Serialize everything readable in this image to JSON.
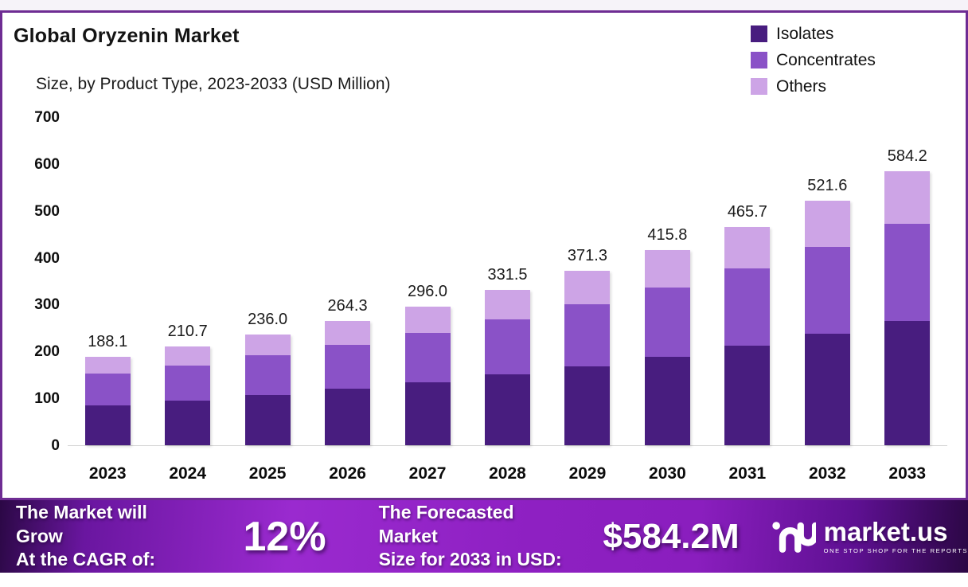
{
  "header": {
    "title": "Global Oryzenin Market",
    "subtitle": "Size, by Product Type, 2023-2033 (USD Million)"
  },
  "chart_data": {
    "type": "bar",
    "stacked": true,
    "title": "Global Oryzenin Market Size, by Product Type, 2023-2033 (USD Million)",
    "categories": [
      "2023",
      "2024",
      "2025",
      "2026",
      "2027",
      "2028",
      "2029",
      "2030",
      "2031",
      "2032",
      "2033"
    ],
    "series": [
      {
        "name": "Isolates",
        "color": "#481d7f",
        "values": [
          85.6,
          95.9,
          107.4,
          120.3,
          134.7,
          150.8,
          168.9,
          189.2,
          211.9,
          237.3,
          265.8
        ]
      },
      {
        "name": "Concentrates",
        "color": "#8a52c7",
        "values": [
          66.8,
          74.8,
          83.8,
          93.8,
          105.1,
          117.7,
          131.8,
          147.6,
          165.3,
          185.2,
          207.4
        ]
      },
      {
        "name": "Others",
        "color": "#cda4e6",
        "values": [
          35.7,
          40.0,
          44.8,
          50.2,
          56.2,
          63.0,
          70.6,
          79.0,
          88.5,
          99.1,
          111.0
        ]
      }
    ],
    "totals": [
      188.1,
      210.7,
      236.0,
      264.3,
      296.0,
      331.5,
      371.3,
      415.8,
      465.7,
      521.6,
      584.2
    ],
    "total_labels": [
      "188.1",
      "210.7",
      "236.0",
      "264.3",
      "296.0",
      "331.5",
      "371.3",
      "415.8",
      "465.7",
      "521.6",
      "584.2"
    ],
    "xlabel": "",
    "ylabel": "",
    "ylim": [
      0,
      700
    ],
    "yticks": [
      0,
      100,
      200,
      300,
      400,
      500,
      600,
      700
    ],
    "grid": false,
    "legend_position": "top-right"
  },
  "colors": {
    "frame_border": "#6e2c93",
    "axis_line": "#d6d6d6",
    "banner_dark": "#2b0845",
    "banner_bright": "#9a2acf"
  },
  "banner": {
    "cagr": {
      "line1": "The Market will Grow",
      "line2": "At the CAGR of:",
      "value": "12%"
    },
    "forecast": {
      "line1": "The Forecasted Market",
      "line2": "Size for 2033 in USD:",
      "value": "$584.2M"
    }
  },
  "logo": {
    "name": "market.us",
    "tagline": "ONE STOP SHOP FOR THE REPORTS"
  }
}
